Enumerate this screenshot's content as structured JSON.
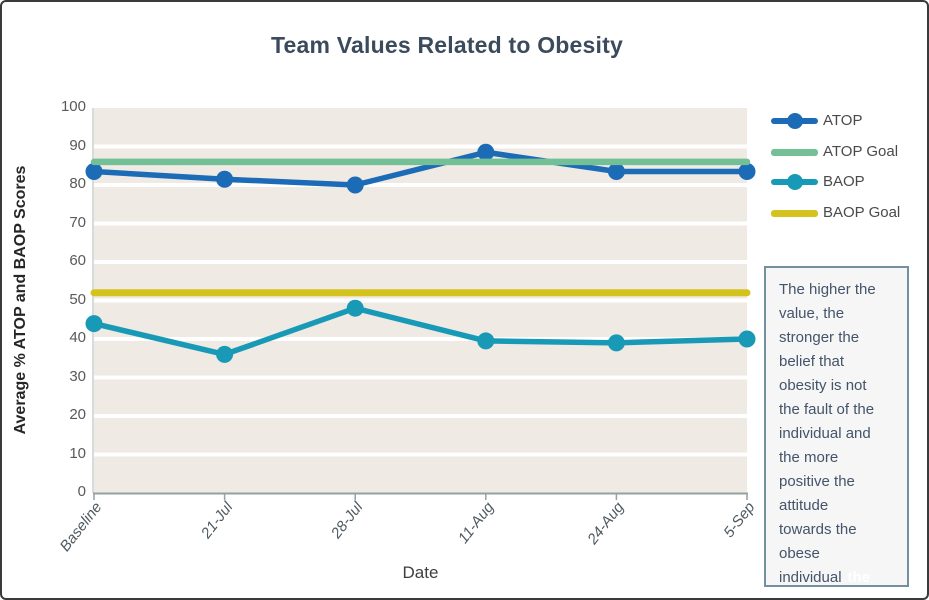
{
  "chart_data": {
    "type": "line",
    "title": "Team Values Related to Obesity",
    "xlabel": "Date",
    "ylabel": "Average % ATOP and BAOP Scores",
    "categories": [
      "Baseline",
      "21-Jul",
      "28-Jul",
      "11-Aug",
      "24-Aug",
      "5-Sep"
    ],
    "series": [
      {
        "name": "ATOP",
        "color": "#1b6bb7",
        "marker": true,
        "line_width": 5.5,
        "values": [
          83.5,
          81.5,
          80,
          88.5,
          83.5,
          83.5
        ]
      },
      {
        "name": "ATOP Goal",
        "color": "#74c096",
        "marker": false,
        "line_width": 6.5,
        "values": [
          86,
          86,
          86,
          86,
          86,
          86
        ]
      },
      {
        "name": "BAOP",
        "color": "#189ab6",
        "marker": true,
        "line_width": 5.5,
        "values": [
          44,
          36,
          48,
          39.5,
          39,
          40
        ]
      },
      {
        "name": "BAOP Goal",
        "color": "#d5c31d",
        "marker": false,
        "line_width": 7,
        "values": [
          52,
          52,
          52,
          52,
          52,
          52
        ]
      }
    ],
    "ylim": [
      0,
      100
    ],
    "ytick_step": 10,
    "grid": "horizontal",
    "grid_color": "#ffffff",
    "plot_bg": "#efeae3",
    "legend_position": "right"
  },
  "note_box": {
    "lines": [
      "The higher the",
      "value, the",
      "stronger the",
      "belief that",
      "obesity is not",
      "the fault of the",
      "individual and",
      "the more",
      "positive the",
      "attitude",
      "towards the",
      "obese",
      "individual"
    ],
    "ghost_text": "the"
  }
}
